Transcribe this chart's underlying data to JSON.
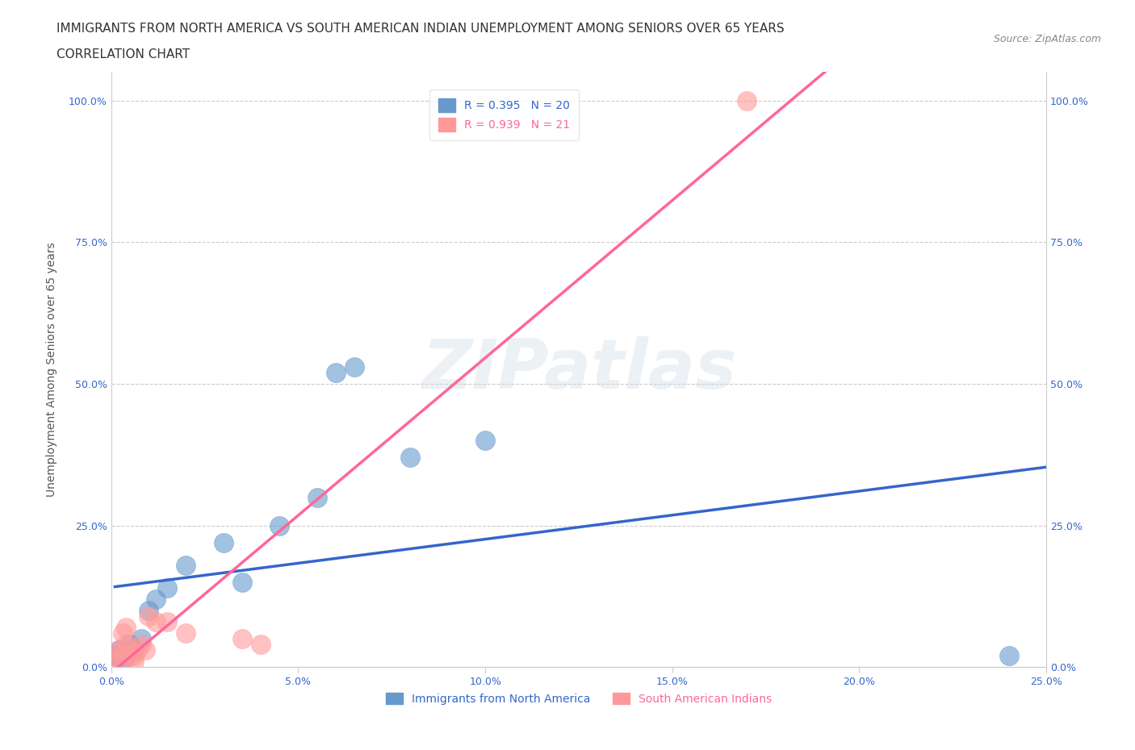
{
  "title_line1": "IMMIGRANTS FROM NORTH AMERICA VS SOUTH AMERICAN INDIAN UNEMPLOYMENT AMONG SENIORS OVER 65 YEARS",
  "title_line2": "CORRELATION CHART",
  "source": "Source: ZipAtlas.com",
  "xlabel": "",
  "ylabel": "Unemployment Among Seniors over 65 years",
  "xlim": [
    0,
    0.25
  ],
  "ylim": [
    0,
    1.05
  ],
  "xticks": [
    0.0,
    0.05,
    0.1,
    0.15,
    0.2,
    0.25
  ],
  "yticks": [
    0.0,
    0.25,
    0.5,
    0.75,
    1.0
  ],
  "xticklabels": [
    "0.0%",
    "5.0%",
    "10.0%",
    "15.0%",
    "20.0%",
    "25.0%"
  ],
  "yticklabels": [
    "0.0%",
    "25.0%",
    "50.0%",
    "75.0%",
    "100.0%"
  ],
  "blue_R": "0.395",
  "blue_N": "20",
  "pink_R": "0.939",
  "pink_N": "21",
  "blue_color": "#6699cc",
  "pink_color": "#ff9999",
  "blue_line_color": "#3366cc",
  "pink_line_color": "#ff6699",
  "legend_label_blue": "Immigrants from North America",
  "legend_label_pink": "South American Indians",
  "watermark": "ZIPatlas",
  "blue_scatter_x": [
    0.001,
    0.002,
    0.003,
    0.004,
    0.005,
    0.006,
    0.008,
    0.01,
    0.012,
    0.015,
    0.02,
    0.03,
    0.035,
    0.045,
    0.055,
    0.06,
    0.065,
    0.08,
    0.1,
    0.24
  ],
  "blue_scatter_y": [
    0.02,
    0.03,
    0.01,
    0.02,
    0.04,
    0.03,
    0.05,
    0.1,
    0.12,
    0.14,
    0.18,
    0.22,
    0.15,
    0.25,
    0.3,
    0.52,
    0.53,
    0.37,
    0.4,
    0.02
  ],
  "pink_scatter_x": [
    0.001,
    0.001,
    0.002,
    0.003,
    0.003,
    0.004,
    0.004,
    0.005,
    0.005,
    0.006,
    0.006,
    0.007,
    0.008,
    0.009,
    0.01,
    0.012,
    0.015,
    0.02,
    0.035,
    0.04,
    0.17
  ],
  "pink_scatter_y": [
    0.02,
    0.01,
    0.03,
    0.02,
    0.06,
    0.07,
    0.04,
    0.03,
    0.02,
    0.02,
    0.01,
    0.03,
    0.04,
    0.03,
    0.09,
    0.08,
    0.08,
    0.06,
    0.05,
    0.04,
    1.0
  ],
  "background_color": "#ffffff",
  "grid_color": "#cccccc",
  "title_fontsize": 11,
  "axis_label_fontsize": 10,
  "tick_fontsize": 9,
  "legend_fontsize": 10
}
